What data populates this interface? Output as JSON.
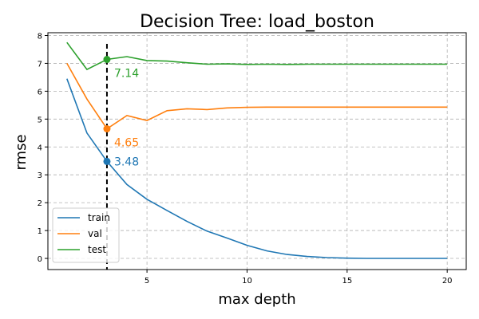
{
  "chart_data": {
    "type": "line",
    "title": "Decision Tree: load_boston",
    "xlabel": "max depth",
    "ylabel": "rmse",
    "xlim": [
      0.05,
      20.95
    ],
    "ylim": [
      -0.4,
      8.1
    ],
    "xticks": [
      5,
      10,
      15,
      20
    ],
    "yticks": [
      0,
      1,
      2,
      3,
      4,
      5,
      6,
      7,
      8
    ],
    "grid": true,
    "legend": "lower-left",
    "x": [
      1,
      2,
      3,
      4,
      5,
      6,
      7,
      8,
      9,
      10,
      11,
      12,
      13,
      14,
      15,
      16,
      17,
      18,
      19,
      20
    ],
    "series": [
      {
        "name": "train",
        "color": "#1f77b4",
        "values": [
          6.45,
          4.5,
          3.48,
          2.65,
          2.12,
          1.72,
          1.33,
          0.98,
          0.73,
          0.47,
          0.27,
          0.14,
          0.07,
          0.03,
          0.01,
          0.0,
          0.0,
          0.0,
          0.0,
          0.0
        ]
      },
      {
        "name": "val",
        "color": "#ff7f0e",
        "values": [
          7.0,
          5.72,
          4.65,
          5.13,
          4.95,
          5.3,
          5.37,
          5.34,
          5.4,
          5.42,
          5.43,
          5.43,
          5.43,
          5.43,
          5.43,
          5.43,
          5.43,
          5.43,
          5.43,
          5.43
        ]
      },
      {
        "name": "test",
        "color": "#2ca02c",
        "values": [
          7.75,
          6.78,
          7.14,
          7.24,
          7.1,
          7.08,
          7.02,
          6.97,
          6.98,
          6.96,
          6.97,
          6.96,
          6.97,
          6.97,
          6.97,
          6.97,
          6.97,
          6.97,
          6.97,
          6.97
        ]
      }
    ],
    "best_x": 3,
    "annotations": [
      {
        "series": "train",
        "x": 3,
        "y": 3.48,
        "label": "3.48"
      },
      {
        "series": "val",
        "x": 3,
        "y": 4.65,
        "label": "4.65"
      },
      {
        "series": "test",
        "x": 3,
        "y": 7.14,
        "label": "7.14"
      }
    ]
  }
}
